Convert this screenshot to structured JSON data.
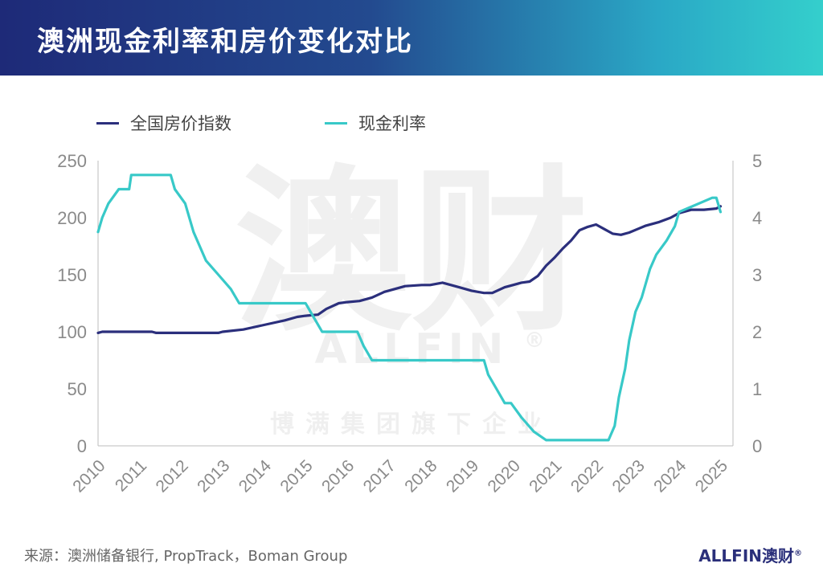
{
  "header": {
    "title": "澳洲现金利率和房价变化对比"
  },
  "legend": [
    {
      "label": "全国房价指数",
      "color": "#2b2f7c"
    },
    {
      "label": "现金利率",
      "color": "#38c9c8"
    }
  ],
  "source": "来源：澳洲储备银行, PropTrack，Boman Group",
  "brand": {
    "text": "ALLFIN澳财",
    "mark": "®"
  },
  "watermark": {
    "big": "澳财",
    "en": "ALLFIN",
    "mark": "®",
    "cn": "博满集团旗下企业"
  },
  "chart_data": {
    "type": "line",
    "title": "澳洲现金利率和房价变化对比",
    "x_ticks": [
      "2010",
      "2011",
      "2012",
      "2013",
      "2014",
      "2015",
      "2016",
      "2017",
      "2018",
      "2019",
      "2020",
      "2021",
      "2022",
      "2023",
      "2024",
      "2025"
    ],
    "xlim": [
      2010,
      2025.3
    ],
    "y_left": {
      "ticks": [
        0,
        50,
        100,
        150,
        200,
        250
      ],
      "range": [
        0,
        250
      ]
    },
    "y_right": {
      "ticks": [
        0,
        1,
        2,
        3,
        4,
        5
      ],
      "range": [
        0,
        5
      ]
    },
    "grid": false,
    "legend_position": "top",
    "series": [
      {
        "name": "全国房价指数",
        "axis": "left",
        "color": "#2b2f7c",
        "x": [
          2010.0,
          2010.1,
          2010.5,
          2011.0,
          2011.3,
          2011.4,
          2012.0,
          2012.5,
          2012.9,
          2013.0,
          2013.5,
          2014.0,
          2014.5,
          2014.8,
          2015.0,
          2015.3,
          2015.5,
          2015.8,
          2016.0,
          2016.3,
          2016.6,
          2016.9,
          2017.0,
          2017.4,
          2017.8,
          2018.0,
          2018.3,
          2018.7,
          2019.0,
          2019.3,
          2019.5,
          2019.8,
          2020.0,
          2020.2,
          2020.4,
          2020.6,
          2020.8,
          2021.0,
          2021.2,
          2021.4,
          2021.6,
          2021.8,
          2022.0,
          2022.2,
          2022.4,
          2022.6,
          2022.8,
          2023.0,
          2023.2,
          2023.5,
          2023.8,
          2024.0,
          2024.3,
          2024.6,
          2024.9,
          2025.0
        ],
        "y": [
          99,
          100,
          100,
          100,
          100,
          99,
          99,
          99,
          99,
          100,
          102,
          106,
          110,
          113,
          114,
          115,
          120,
          125,
          126,
          127,
          130,
          135,
          136,
          140,
          141,
          141,
          143,
          139,
          136,
          134,
          134,
          139,
          141,
          143,
          144,
          149,
          158,
          165,
          173,
          180,
          189,
          192,
          194,
          190,
          186,
          185,
          187,
          190,
          193,
          196,
          200,
          204,
          207,
          207,
          208,
          210
        ]
      },
      {
        "name": "现金利率",
        "axis": "right",
        "color": "#38c9c8",
        "x": [
          2010.0,
          2010.1,
          2010.25,
          2010.5,
          2010.75,
          2010.8,
          2011.75,
          2011.85,
          2012.1,
          2012.3,
          2012.45,
          2012.6,
          2012.9,
          2013.2,
          2013.4,
          2013.6,
          2015.0,
          2015.2,
          2015.4,
          2016.25,
          2016.4,
          2016.6,
          2019.3,
          2019.4,
          2019.6,
          2019.8,
          2019.95,
          2020.2,
          2020.5,
          2020.8,
          2022.3,
          2022.45,
          2022.55,
          2022.7,
          2022.8,
          2022.95,
          2023.1,
          2023.3,
          2023.45,
          2023.7,
          2023.9,
          2024.0,
          2024.8,
          2024.9,
          2025.0
        ],
        "y": [
          3.75,
          4.0,
          4.25,
          4.5,
          4.5,
          4.75,
          4.75,
          4.5,
          4.25,
          3.75,
          3.5,
          3.25,
          3.0,
          2.75,
          2.5,
          2.5,
          2.5,
          2.25,
          2.0,
          2.0,
          1.75,
          1.5,
          1.5,
          1.25,
          1.0,
          0.75,
          0.75,
          0.5,
          0.25,
          0.1,
          0.1,
          0.35,
          0.85,
          1.35,
          1.85,
          2.35,
          2.6,
          3.1,
          3.35,
          3.6,
          3.85,
          4.1,
          4.35,
          4.35,
          4.1
        ]
      }
    ]
  }
}
